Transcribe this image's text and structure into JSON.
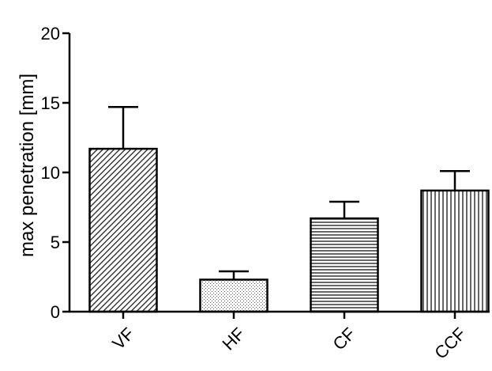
{
  "chart_data": {
    "type": "bar",
    "categories": [
      "VF",
      "HF",
      "CF",
      "CCF"
    ],
    "values": [
      11.7,
      2.3,
      6.7,
      8.7
    ],
    "error_upper": [
      14.7,
      2.9,
      7.9,
      10.1
    ],
    "fill_patterns": [
      "diagonal-hatch",
      "stipple",
      "horizontal-lines",
      "vertical-lines"
    ],
    "xlabel": "",
    "ylabel": "max penetration [mm]",
    "ylim": [
      0,
      20
    ],
    "yticks": [
      0,
      5,
      10,
      15,
      20
    ],
    "grid": false,
    "legend": "none",
    "colors": {
      "stroke": "#000000",
      "background": "#ffffff"
    }
  }
}
